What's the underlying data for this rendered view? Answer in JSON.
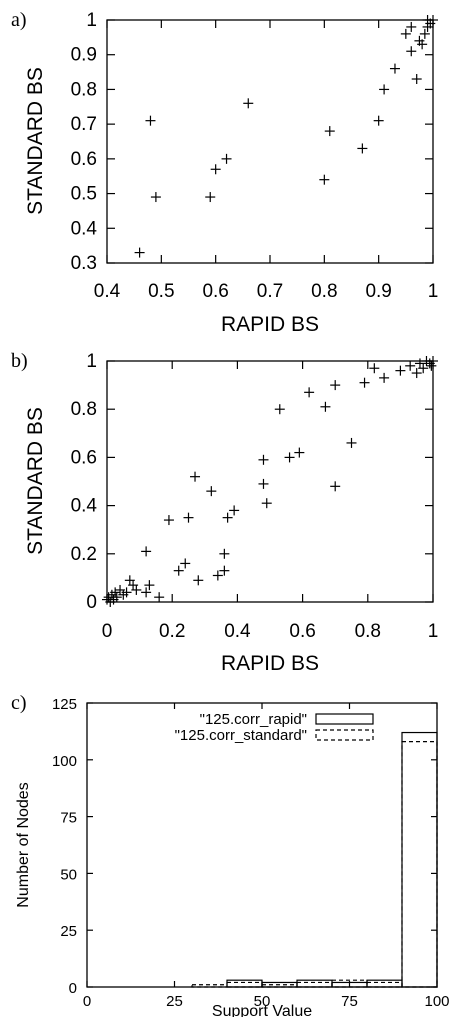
{
  "chart_data": [
    {
      "panel": "a)",
      "type": "scatter",
      "xlabel": "RAPID BS",
      "ylabel": "STANDARD BS",
      "xlim": [
        0.4,
        1.0
      ],
      "ylim": [
        0.3,
        1.0
      ],
      "xticks": [
        "0.4",
        "0.5",
        "0.6",
        "0.7",
        "0.8",
        "0.9",
        "1"
      ],
      "yticks": [
        "0.3",
        "0.4",
        "0.5",
        "0.6",
        "0.7",
        "0.8",
        "0.9",
        "1"
      ],
      "grid": false,
      "points": [
        [
          0.46,
          0.33
        ],
        [
          0.48,
          0.71
        ],
        [
          0.49,
          0.49
        ],
        [
          0.59,
          0.49
        ],
        [
          0.6,
          0.57
        ],
        [
          0.62,
          0.6
        ],
        [
          0.66,
          0.76
        ],
        [
          0.8,
          0.54
        ],
        [
          0.81,
          0.68
        ],
        [
          0.87,
          0.63
        ],
        [
          0.9,
          0.71
        ],
        [
          0.91,
          0.8
        ],
        [
          0.93,
          0.86
        ],
        [
          0.95,
          0.96
        ],
        [
          0.96,
          0.91
        ],
        [
          0.96,
          0.98
        ],
        [
          0.97,
          0.83
        ],
        [
          0.975,
          0.94
        ],
        [
          0.98,
          0.93
        ],
        [
          0.985,
          0.96
        ],
        [
          0.99,
          0.98
        ],
        [
          0.995,
          0.99
        ],
        [
          1.0,
          1.0
        ],
        [
          0.99,
          1.0
        ]
      ]
    },
    {
      "panel": "b)",
      "type": "scatter",
      "xlabel": "RAPID BS",
      "ylabel": "STANDARD BS",
      "xlim": [
        0,
        1
      ],
      "ylim": [
        0,
        1
      ],
      "xticks": [
        "0",
        "0.2",
        "0.4",
        "0.6",
        "0.8",
        "1"
      ],
      "yticks": [
        "0",
        "0.2",
        "0.4",
        "0.6",
        "0.8",
        "1"
      ],
      "grid": false,
      "points": [
        [
          0.0,
          0.01
        ],
        [
          0.005,
          0.02
        ],
        [
          0.01,
          0.0
        ],
        [
          0.015,
          0.03
        ],
        [
          0.02,
          0.01
        ],
        [
          0.025,
          0.04
        ],
        [
          0.03,
          0.02
        ],
        [
          0.04,
          0.05
        ],
        [
          0.05,
          0.03
        ],
        [
          0.06,
          0.04
        ],
        [
          0.07,
          0.09
        ],
        [
          0.08,
          0.07
        ],
        [
          0.09,
          0.05
        ],
        [
          0.12,
          0.04
        ],
        [
          0.12,
          0.21
        ],
        [
          0.13,
          0.07
        ],
        [
          0.16,
          0.02
        ],
        [
          0.19,
          0.34
        ],
        [
          0.22,
          0.13
        ],
        [
          0.24,
          0.16
        ],
        [
          0.25,
          0.35
        ],
        [
          0.27,
          0.52
        ],
        [
          0.28,
          0.09
        ],
        [
          0.32,
          0.46
        ],
        [
          0.34,
          0.11
        ],
        [
          0.36,
          0.13
        ],
        [
          0.36,
          0.2
        ],
        [
          0.37,
          0.35
        ],
        [
          0.39,
          0.38
        ],
        [
          0.48,
          0.49
        ],
        [
          0.48,
          0.59
        ],
        [
          0.49,
          0.41
        ],
        [
          0.53,
          0.8
        ],
        [
          0.56,
          0.6
        ],
        [
          0.59,
          0.62
        ],
        [
          0.62,
          0.87
        ],
        [
          0.67,
          0.81
        ],
        [
          0.7,
          0.9
        ],
        [
          0.7,
          0.48
        ],
        [
          0.75,
          0.66
        ],
        [
          0.79,
          0.91
        ],
        [
          0.82,
          0.97
        ],
        [
          0.85,
          0.93
        ],
        [
          0.9,
          0.96
        ],
        [
          0.93,
          0.98
        ],
        [
          0.95,
          0.95
        ],
        [
          0.96,
          0.99
        ],
        [
          0.97,
          0.97
        ],
        [
          0.98,
          1.0
        ],
        [
          0.99,
          0.99
        ],
        [
          1.0,
          1.0
        ],
        [
          0.995,
          0.98
        ]
      ]
    },
    {
      "panel": "c)",
      "type": "bar",
      "xlabel": "Support Value",
      "ylabel": "Number of Nodes",
      "xlim": [
        0,
        100
      ],
      "ylim": [
        0,
        125
      ],
      "xticks": [
        "0",
        "25",
        "50",
        "75",
        "100"
      ],
      "yticks": [
        "0",
        "25",
        "50",
        "75",
        "100",
        "125"
      ],
      "grid": false,
      "legend_position": "top-right",
      "bin_edges": [
        0,
        10,
        20,
        30,
        40,
        50,
        60,
        70,
        80,
        90,
        100
      ],
      "series": [
        {
          "name": "\"125.corr_rapid\"",
          "style": "solid",
          "values": [
            0,
            0,
            0,
            0,
            3,
            2,
            3,
            2,
            3,
            112
          ]
        },
        {
          "name": "\"125.corr_standard\"",
          "style": "dashed",
          "values": [
            0,
            0,
            0,
            1,
            2,
            1,
            2,
            3,
            2,
            108
          ]
        }
      ]
    }
  ]
}
